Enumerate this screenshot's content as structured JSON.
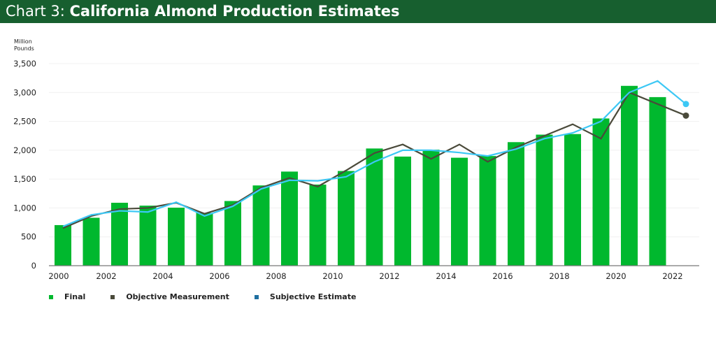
{
  "header": {
    "prefix": "Chart 3:",
    "title": "California Almond Production Estimates"
  },
  "colors": {
    "header_bg": "#175f2f",
    "final": "#00b82e",
    "objective": "#4a4a3a",
    "subjective": "#3cc8f5",
    "subjective_legend": "#1f6fa0"
  },
  "chart_data": {
    "type": "bar+line",
    "title": "California Almond Production Estimates",
    "ylabel": "Million Pounds",
    "xlabel": "",
    "ylim": [
      0,
      3500
    ],
    "yticks": [
      0,
      500,
      1000,
      1500,
      2000,
      2500,
      3000,
      3500
    ],
    "ytick_labels": [
      "0",
      "500",
      "1,000",
      "1,500",
      "2,000",
      "2,500",
      "3,000",
      "3,500"
    ],
    "xtick_labels": [
      "2000",
      "2002",
      "2004",
      "2006",
      "2008",
      "2010",
      "2012",
      "2014",
      "2016",
      "2018",
      "2020",
      "2022"
    ],
    "grid": true,
    "legend_position": "bottom-left",
    "x": [
      2000,
      2001,
      2002,
      2003,
      2004,
      2005,
      2006,
      2007,
      2008,
      2009,
      2010,
      2011,
      2012,
      2013,
      2014,
      2015,
      2016,
      2017,
      2018,
      2019,
      2020,
      2021,
      2022
    ],
    "series": [
      {
        "name": "Final",
        "type": "bar",
        "values": [
          703,
          830,
          1090,
          1040,
          1005,
          915,
          1120,
          1390,
          1630,
          1405,
          1640,
          2030,
          1890,
          2010,
          1870,
          1900,
          2140,
          2270,
          2280,
          2550,
          3115,
          2920,
          null
        ]
      },
      {
        "name": "Objective Measurement",
        "type": "line",
        "values": [
          650,
          860,
          980,
          1000,
          1090,
          900,
          1050,
          1350,
          1520,
          1370,
          1650,
          1950,
          2100,
          1850,
          2100,
          1800,
          2050,
          2250,
          2450,
          2200,
          3000,
          2800,
          2600
        ]
      },
      {
        "name": "Subjective Estimate",
        "type": "line",
        "values": [
          680,
          880,
          950,
          930,
          1100,
          860,
          1030,
          1330,
          1480,
          1470,
          1540,
          1800,
          2000,
          2000,
          1960,
          1900,
          2020,
          2200,
          2300,
          2500,
          3000,
          3200,
          2800
        ]
      }
    ]
  }
}
